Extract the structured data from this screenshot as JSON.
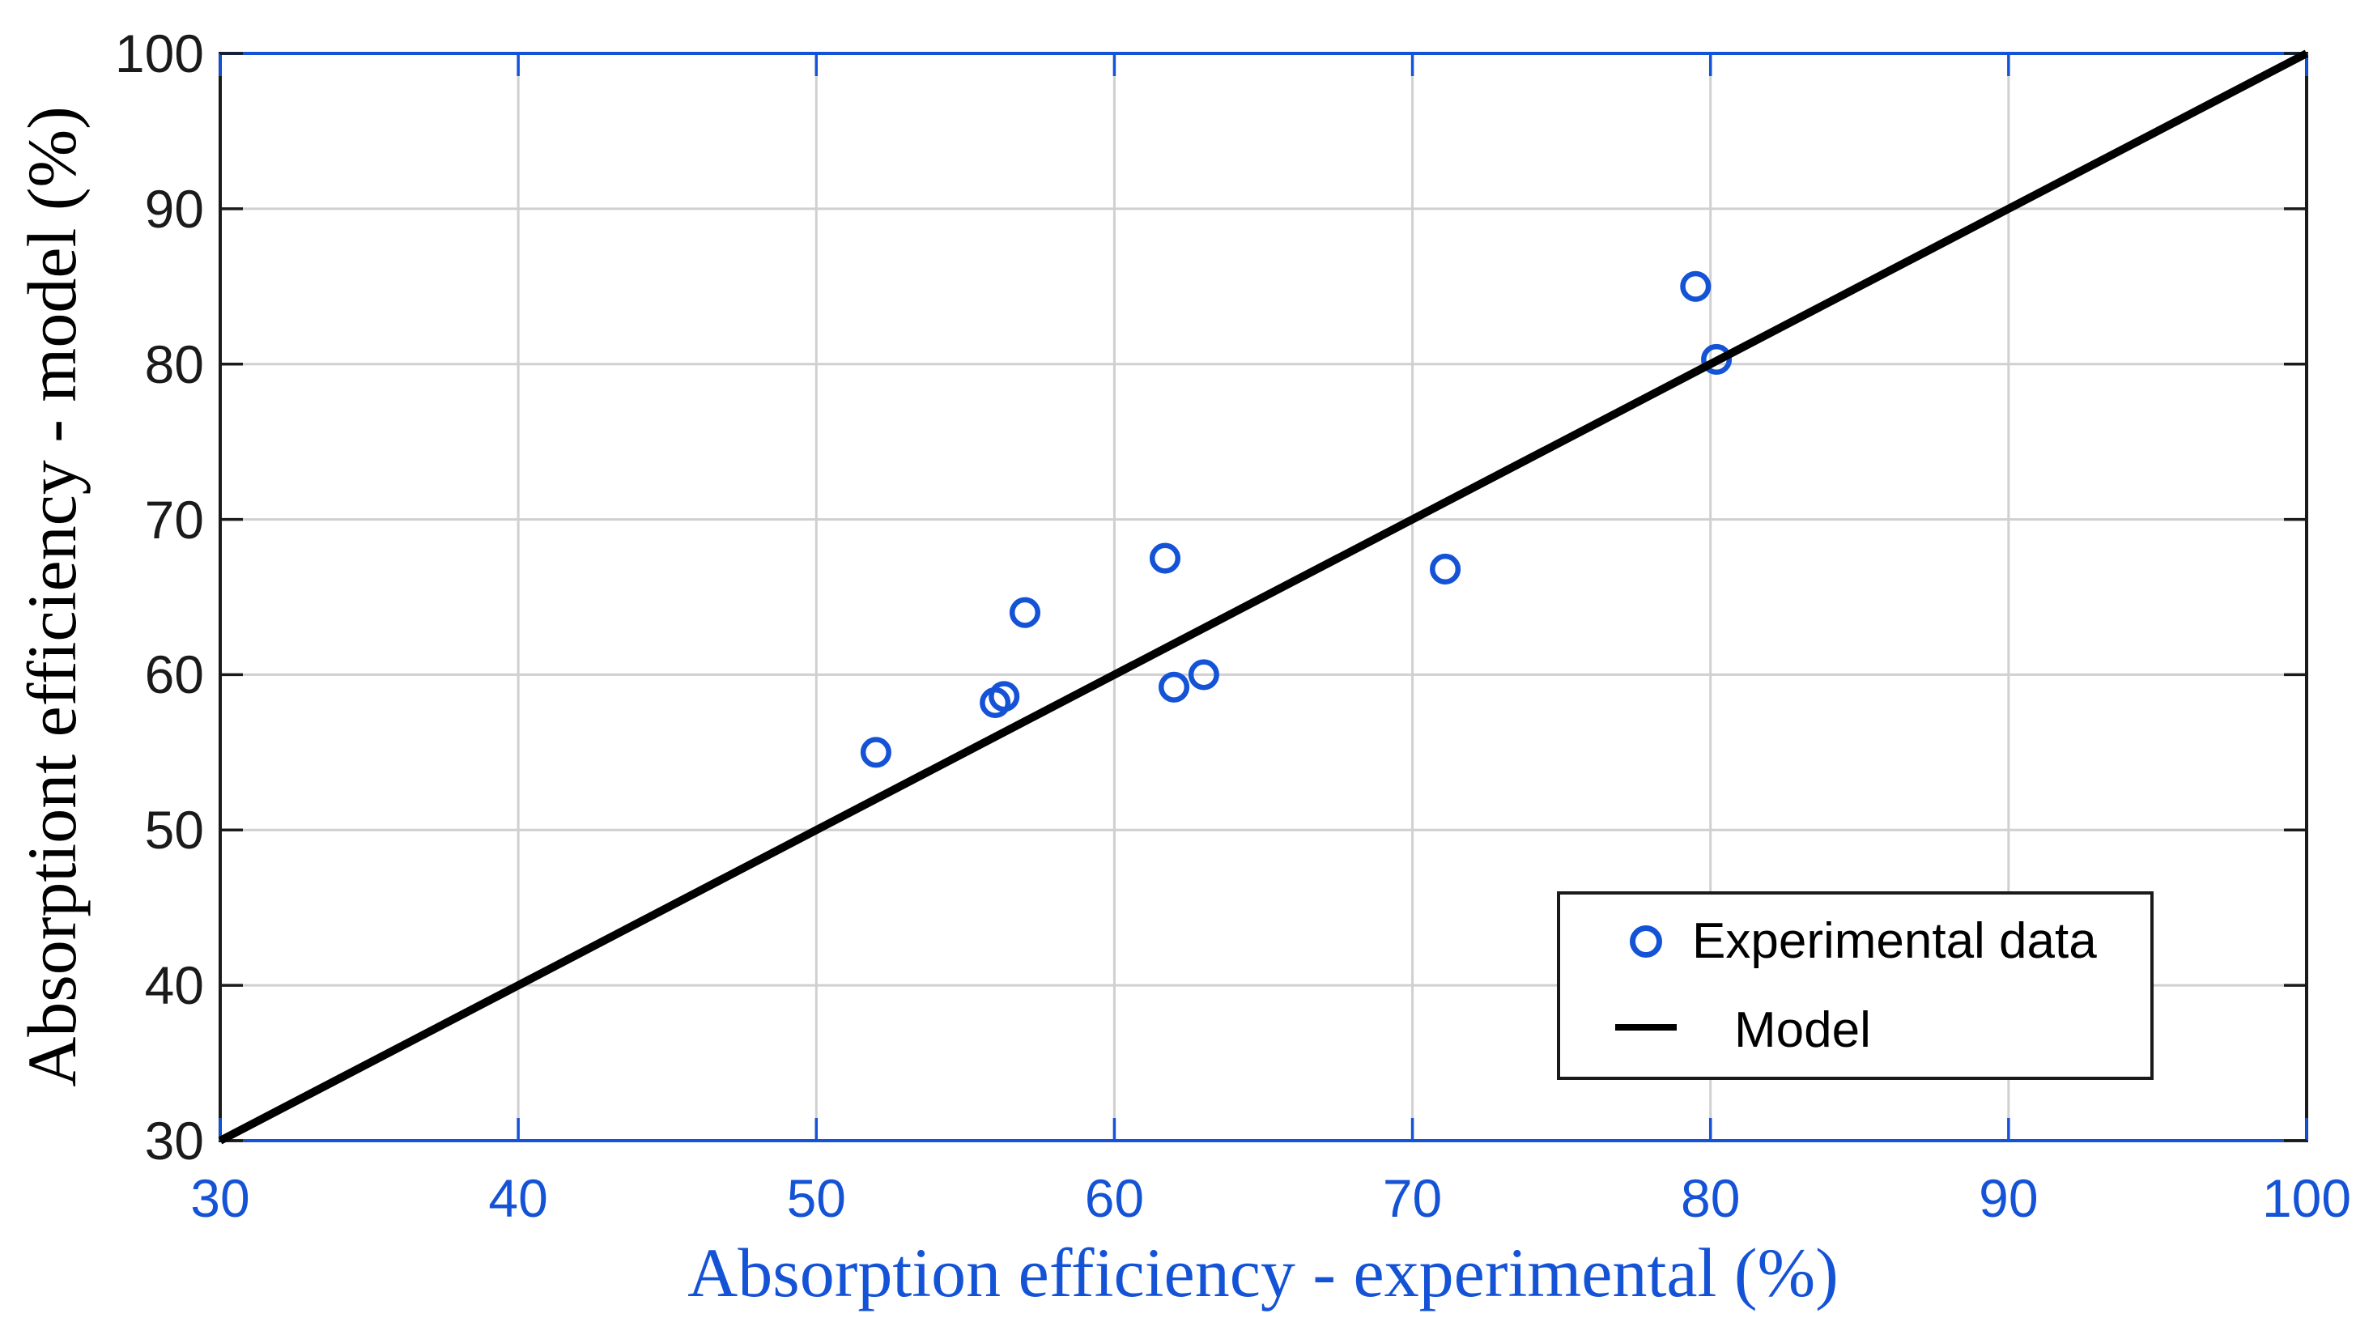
{
  "chart_data": {
    "type": "scatter",
    "xlabel": "Absorption efficiency - experimental (%)",
    "ylabel": "Absorptiont efficiency - model (%)",
    "xlim": [
      30,
      100
    ],
    "ylim": [
      30,
      100
    ],
    "xticks": [
      30,
      40,
      50,
      60,
      70,
      80,
      90,
      100
    ],
    "yticks": [
      30,
      40,
      50,
      60,
      70,
      80,
      90,
      100
    ],
    "grid": true,
    "legend_position": "bottom-right",
    "series": [
      {
        "name": "Experimental data",
        "kind": "scatter",
        "marker": "circle",
        "color": "#1553d6",
        "points": [
          [
            52,
            55
          ],
          [
            56,
            58.2
          ],
          [
            56.3,
            58.6
          ],
          [
            57,
            64
          ],
          [
            61.7,
            67.5
          ],
          [
            62,
            59.2
          ],
          [
            63,
            60
          ],
          [
            71.1,
            66.8
          ],
          [
            79.5,
            85
          ],
          [
            80.2,
            80.3
          ]
        ]
      },
      {
        "name": "Model",
        "kind": "line",
        "color": "#000000",
        "points": [
          [
            30,
            30
          ],
          [
            100,
            100
          ]
        ]
      }
    ],
    "legend": [
      {
        "label": "Experimental data"
      },
      {
        "label": "Model"
      }
    ],
    "colors": {
      "x_axis": "#1553d6",
      "y_axis": "#1a1a1a",
      "grid": "#d0d0d0",
      "model_line": "#000000",
      "marker": "#1553d6"
    }
  }
}
